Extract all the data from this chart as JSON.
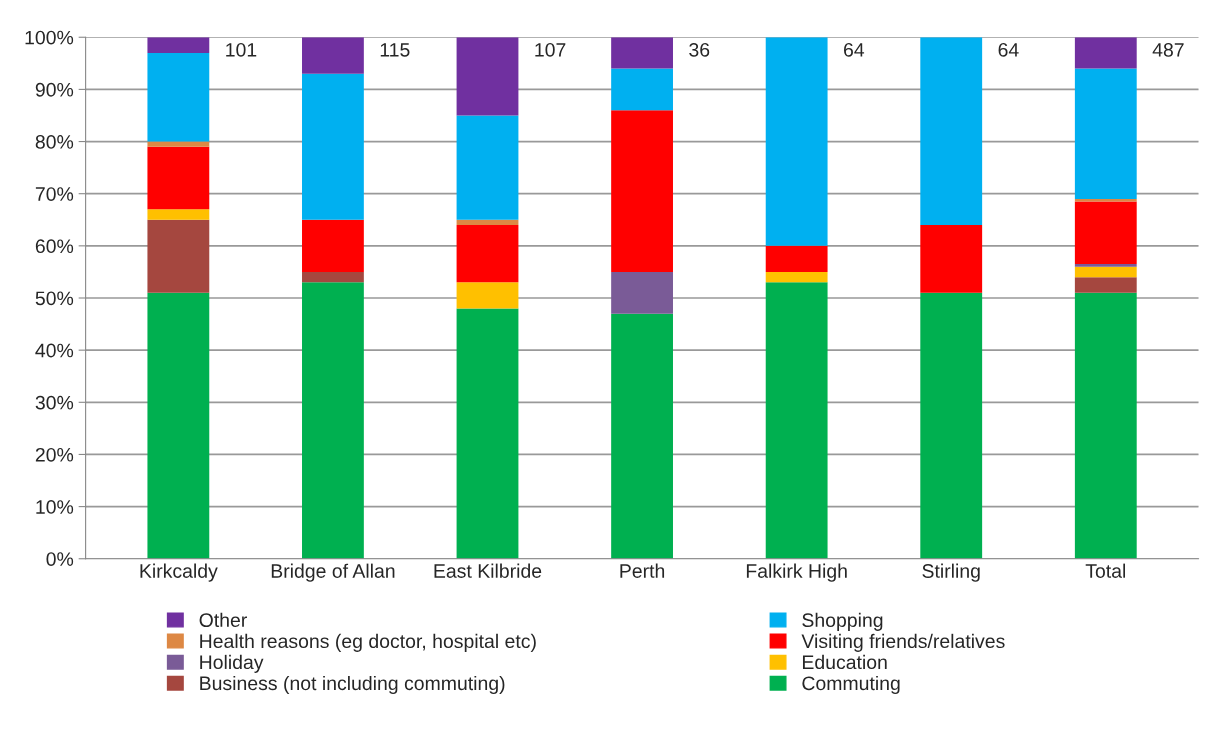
{
  "chart_data": {
    "type": "bar",
    "stacked": true,
    "categories": [
      "Kirkcaldy",
      "Bridge of Allan",
      "East Kilbride",
      "Perth",
      "Falkirk High",
      "Stirling",
      "Total"
    ],
    "series": [
      {
        "name": "Commuting",
        "color": "#00b050",
        "values": [
          51,
          53,
          48,
          47,
          53,
          51,
          51
        ]
      },
      {
        "name": "Business (not including commuting)",
        "color": "#a5473f",
        "values": [
          14,
          2,
          0,
          0,
          0,
          0,
          3
        ]
      },
      {
        "name": "Education",
        "color": "#ffc000",
        "values": [
          2,
          0,
          5,
          0,
          2,
          0,
          2
        ]
      },
      {
        "name": "Holiday",
        "color": "#7a5b97",
        "values": [
          0,
          0,
          0,
          8,
          0,
          0,
          0.5
        ]
      },
      {
        "name": "Visiting friends/relatives",
        "color": "#ff0000",
        "values": [
          12,
          10,
          11,
          31,
          5,
          13,
          12
        ]
      },
      {
        "name": "Health reasons (eg doctor, hospital etc)",
        "color": "#dd8844",
        "values": [
          1,
          0,
          1,
          0,
          0,
          0,
          0.5
        ]
      },
      {
        "name": "Shopping",
        "color": "#00b0f0",
        "values": [
          17,
          28,
          20,
          8,
          40,
          36,
          25
        ]
      },
      {
        "name": "Other",
        "color": "#7030a0",
        "values": [
          3,
          7,
          15,
          6,
          0,
          0,
          6
        ]
      }
    ],
    "annotations": [
      {
        "text": "101",
        "x": "Kirkcaldy",
        "y": 100
      },
      {
        "text": "115",
        "x": "Bridge of Allan",
        "y": 100
      },
      {
        "text": "107",
        "x": "East Kilbride",
        "y": 100
      },
      {
        "text": "36",
        "x": "Perth",
        "y": 100
      },
      {
        "text": "64",
        "x": "Falkirk High",
        "y": 100
      },
      {
        "text": "64",
        "x": "Stirling",
        "y": 100
      },
      {
        "text": "487",
        "x": "Total",
        "y": 100
      }
    ],
    "ylim": [
      0,
      100
    ],
    "yticks": [
      {
        "value": 0,
        "label": "0%"
      },
      {
        "value": 10,
        "label": "10%"
      },
      {
        "value": 20,
        "label": "20%"
      },
      {
        "value": 30,
        "label": "30%"
      },
      {
        "value": 40,
        "label": "40%"
      },
      {
        "value": 50,
        "label": "50%"
      },
      {
        "value": 60,
        "label": "60%"
      },
      {
        "value": 70,
        "label": "70%"
      },
      {
        "value": 80,
        "label": "80%"
      },
      {
        "value": 90,
        "label": "90%"
      },
      {
        "value": 100,
        "label": "100%"
      }
    ],
    "grid": "y",
    "legend": "bottom"
  }
}
